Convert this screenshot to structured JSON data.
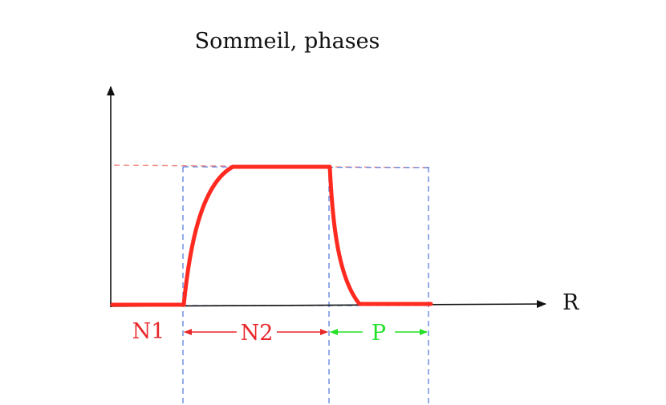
{
  "title": "Sommeil, phases",
  "axis_label": "R",
  "phases": [
    {
      "label": "N1",
      "color": "#e8262a"
    },
    {
      "label": "N2",
      "color": "#e8262a"
    },
    {
      "label": "P",
      "color": "#22e026"
    }
  ],
  "colors": {
    "curve": "#ff2a1f",
    "guide_blue": "#5b7fe0",
    "guide_red": "#f0857e",
    "axis": "#111111"
  }
}
